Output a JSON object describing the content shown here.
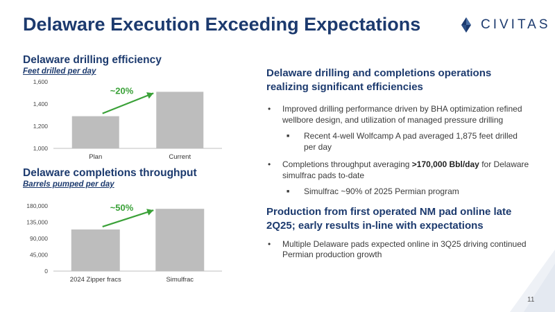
{
  "title": "Delaware Execution Exceeding Expectations",
  "logo": {
    "text": "CIVITAS",
    "icon": "civitas-logo-icon"
  },
  "page_number": "11",
  "charts": {
    "drilling": {
      "title": "Delaware drilling efficiency",
      "subtitle": "Feet drilled per day",
      "annotation": "~20%"
    },
    "completions": {
      "title": "Delaware completions throughput",
      "subtitle": "Barrels pumped per day",
      "annotation": "~50%"
    }
  },
  "right": {
    "section1": {
      "heading": "Delaware drilling and completions operations realizing significant efficiencies",
      "bullet1": "Improved drilling performance driven by BHA optimization refined wellbore design, and utilization of managed pressure drilling",
      "sub1": "Recent 4-well Wolfcamp A pad averaged 1,875 feet drilled per day",
      "bullet2_pre": "Completions throughput averaging ",
      "bullet2_bold": ">170,000 Bbl/day",
      "bullet2_post": " for Delaware simulfrac pads to-date",
      "sub2": "Simulfrac ~90% of 2025 Permian program"
    },
    "section2": {
      "heading": "Production from first operated NM pad online late 2Q25; early results in-line with expectations",
      "bullet1": "Multiple Delaware pads expected online in 3Q25 driving continued Permian production growth"
    }
  },
  "colors": {
    "navy": "#1c3a6e",
    "bar": "#bdbdbd",
    "arrow": "#3aa138"
  },
  "chart_data": [
    {
      "type": "bar",
      "title": "Delaware drilling efficiency",
      "ylabel": "Feet drilled per day",
      "categories": [
        "Plan",
        "Current"
      ],
      "values": [
        1290,
        1510
      ],
      "ylim": [
        1000,
        1600
      ],
      "yticks": [
        1000,
        1200,
        1400,
        1600
      ],
      "ytick_labels": [
        "1,000",
        "1,200",
        "1,400",
        "1,600"
      ],
      "annotation": "~20%",
      "grid": false
    },
    {
      "type": "bar",
      "title": "Delaware completions throughput",
      "ylabel": "Barrels pumped per day",
      "categories": [
        "2024 Zipper fracs",
        "Simulfrac"
      ],
      "values": [
        115000,
        172000
      ],
      "ylim": [
        0,
        180000
      ],
      "yticks": [
        0,
        45000,
        90000,
        135000,
        180000
      ],
      "ytick_labels": [
        "0",
        "45,000",
        "90,000",
        "135,000",
        "180,000"
      ],
      "annotation": "~50%",
      "grid": false
    }
  ]
}
